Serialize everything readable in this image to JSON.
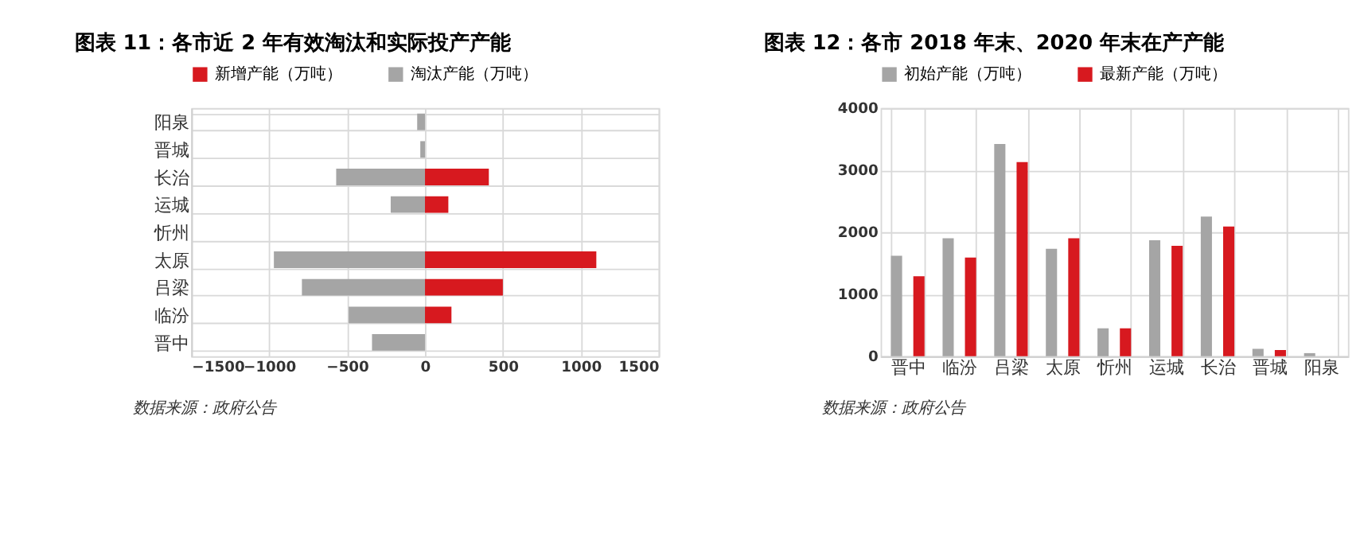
{
  "chart_data": [
    {
      "type": "bar",
      "title": "图表 11：各市近 2 年有效淘汰和实际投产产能",
      "orientation": "horizontal",
      "stacked": true,
      "categories": [
        "阳泉",
        "晋城",
        "长治",
        "运城",
        "忻州",
        "太原",
        "吕梁",
        "临汾",
        "晋中"
      ],
      "series": [
        {
          "name": "新增产能（万吨）",
          "color": "#d7191f",
          "values": [
            0,
            0,
            410,
            150,
            0,
            1100,
            500,
            170,
            0
          ]
        },
        {
          "name": "淘汰产能（万吨）",
          "color": "#a5a5a5",
          "values": [
            -50,
            -30,
            -570,
            -220,
            0,
            -970,
            -790,
            -490,
            -340
          ]
        }
      ],
      "xlim": [
        -1500,
        1500
      ],
      "xticks": [
        -1500,
        -1000,
        -500,
        0,
        500,
        1000,
        1500
      ],
      "grid": true,
      "legend": "top",
      "annotations": [
        "数据来源：政府公告"
      ]
    },
    {
      "type": "bar",
      "title": "图表 12：各市 2018 年末、2020 年末在产产能",
      "categories": [
        "晋中",
        "临汾",
        "吕梁",
        "太原",
        "忻州",
        "运城",
        "长治",
        "晋城",
        "阳泉"
      ],
      "series": [
        {
          "name": "初始产能（万吨）",
          "color": "#a5a5a5",
          "values": [
            1620,
            1900,
            3420,
            1730,
            450,
            1870,
            2250,
            120,
            50
          ]
        },
        {
          "name": "最新产能（万吨）",
          "color": "#d7191f",
          "values": [
            1290,
            1590,
            3130,
            1900,
            450,
            1780,
            2090,
            100,
            0
          ]
        }
      ],
      "ylim": [
        0,
        4000
      ],
      "yticks": [
        0,
        1000,
        2000,
        3000,
        4000
      ],
      "grid": true,
      "legend": "top",
      "annotations": [
        "数据来源：政府公告"
      ]
    }
  ]
}
